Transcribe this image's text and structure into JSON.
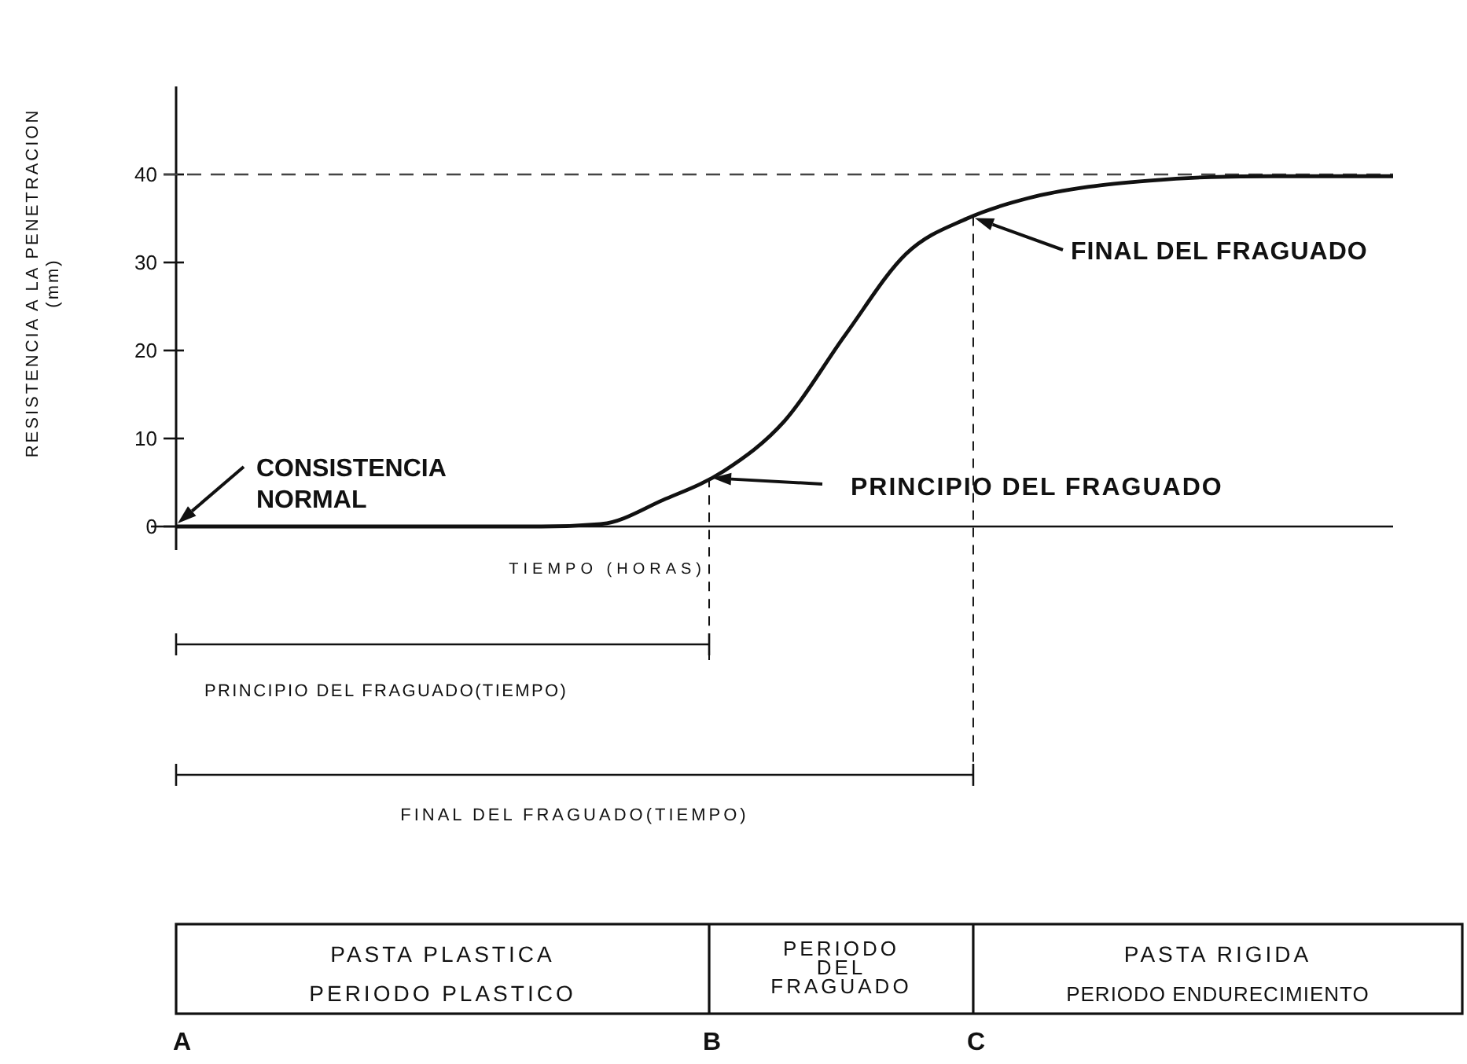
{
  "chart_data": {
    "type": "line",
    "xlabel": "TIEMPO (HORAS)",
    "ylabel": "RESISTENCIA A LA PENETRACION\n(mm)",
    "categories": [
      null,
      null,
      null,
      null,
      null,
      null,
      null,
      null,
      null,
      null,
      null,
      null,
      null,
      null,
      null,
      null,
      null,
      null,
      null,
      null,
      null
    ],
    "series": [
      {
        "color": "#111111",
        "values": [
          0,
          0,
          0,
          0,
          0,
          0,
          0,
          0.3,
          3,
          6.3,
          12,
          21.8,
          31,
          35,
          37.3,
          38.6,
          39.3,
          39.7,
          39.8,
          39.8,
          39.8
        ]
      }
    ],
    "ylim": [
      0,
      50
    ],
    "yticks": [
      0,
      10,
      20,
      30,
      40
    ],
    "grid": false,
    "marker": "none",
    "line_style": "solid",
    "ref_lines": [
      {
        "axis": "y",
        "value": 40,
        "line_style": "dashed",
        "color": "#444444"
      }
    ],
    "annotations": [
      "CONSISTENCIA\nNORMAL",
      "PRINCIPIO DEL FRAGUADO",
      "FINAL DEL FRAGUADO",
      "PRINCIPIO DEL FRAGUADO(TIEMPO)",
      "FINAL DEL FRAGUADO(TIEMPO)",
      "PASTA PLASTICA",
      "PERIODO PLASTICO",
      "PERIODO\nDEL\nFRAGUADO",
      "PASTA RIGIDA",
      "PERIODO ENDURECIMIENTO",
      "A",
      "B",
      "C"
    ]
  }
}
